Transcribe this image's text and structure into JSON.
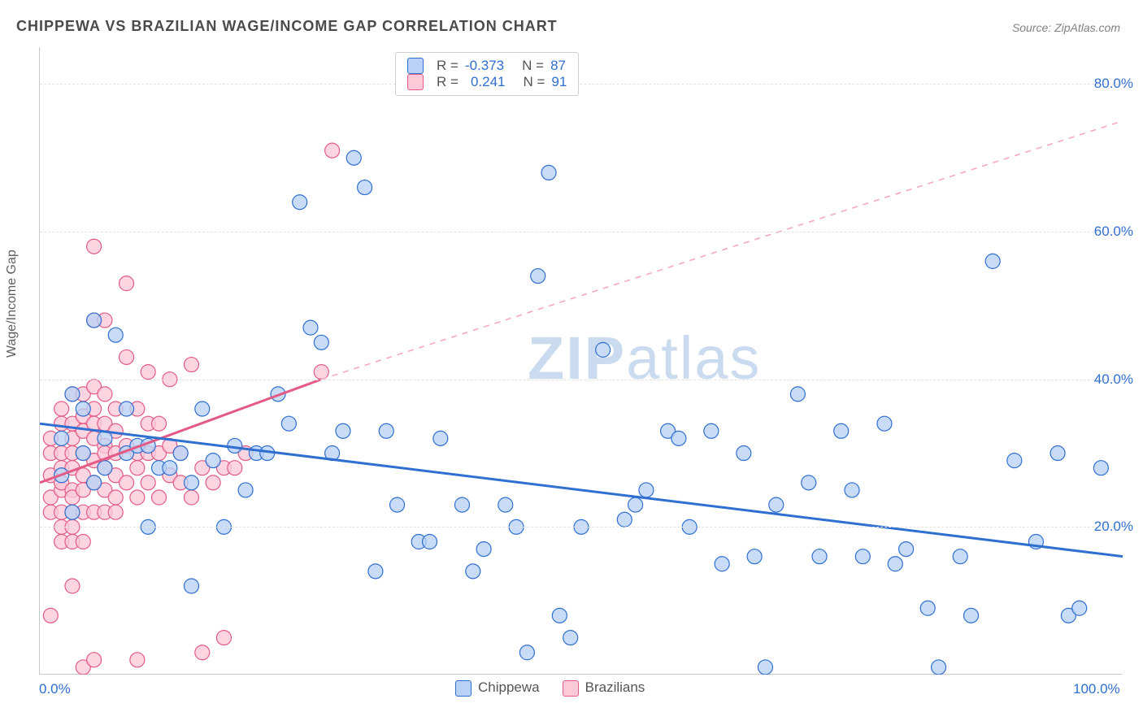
{
  "chart": {
    "type": "scatter",
    "title": "CHIPPEWA VS BRAZILIAN WAGE/INCOME GAP CORRELATION CHART",
    "source": "Source: ZipAtlas.com",
    "ylabel": "Wage/Income Gap",
    "watermark": "ZIPatlas",
    "background_color": "#ffffff",
    "grid_color": "#e2e2e2",
    "axis_color": "#c8c8c8",
    "label_color": "#4a4a4a",
    "tick_color": "#2f6fd0",
    "xlim": [
      0,
      100
    ],
    "ylim": [
      0,
      85
    ],
    "xticks": [
      {
        "v": 0,
        "label": "0.0%"
      },
      {
        "v": 100,
        "label": "100.0%"
      }
    ],
    "yticks": [
      {
        "v": 20,
        "label": "20.0%"
      },
      {
        "v": 40,
        "label": "40.0%"
      },
      {
        "v": 60,
        "label": "60.0%"
      },
      {
        "v": 80,
        "label": "80.0%"
      }
    ],
    "legend": {
      "series": [
        {
          "key": "chippewa",
          "label": "Chippewa",
          "swatch_fill": "#b8d1f5",
          "swatch_stroke": "#2f6fd0"
        },
        {
          "key": "brazilians",
          "label": "Brazilians",
          "swatch_fill": "#fbc9d8",
          "swatch_stroke": "#e35b84"
        }
      ],
      "correlation": [
        {
          "key": "chippewa",
          "R": "-0.373",
          "N": "87"
        },
        {
          "key": "brazilians",
          "R": "0.241",
          "N": "91"
        }
      ]
    },
    "series": {
      "chippewa": {
        "marker_fill": "#b8d1f5",
        "marker_stroke": "#2f6fd0",
        "marker_r": 9,
        "marker_stroke_w": 1.2,
        "marker_opacity": 0.78,
        "trend": {
          "solid_color": "#2f6fd0",
          "solid_w": 3,
          "x1": 0,
          "y1": 34,
          "x2": 100,
          "y2": 16
        },
        "points": [
          [
            2,
            32
          ],
          [
            2,
            27
          ],
          [
            3,
            22
          ],
          [
            3,
            38
          ],
          [
            4,
            30
          ],
          [
            4,
            36
          ],
          [
            5,
            26
          ],
          [
            5,
            48
          ],
          [
            6,
            32
          ],
          [
            6,
            28
          ],
          [
            7,
            46
          ],
          [
            8,
            30
          ],
          [
            8,
            36
          ],
          [
            9,
            31
          ],
          [
            10,
            31
          ],
          [
            10,
            20
          ],
          [
            11,
            28
          ],
          [
            12,
            28
          ],
          [
            13,
            30
          ],
          [
            14,
            26
          ],
          [
            14,
            12
          ],
          [
            15,
            36
          ],
          [
            16,
            29
          ],
          [
            17,
            20
          ],
          [
            18,
            31
          ],
          [
            19,
            25
          ],
          [
            20,
            30
          ],
          [
            21,
            30
          ],
          [
            22,
            38
          ],
          [
            23,
            34
          ],
          [
            24,
            64
          ],
          [
            25,
            47
          ],
          [
            26,
            45
          ],
          [
            27,
            30
          ],
          [
            28,
            33
          ],
          [
            29,
            70
          ],
          [
            30,
            66
          ],
          [
            31,
            14
          ],
          [
            32,
            33
          ],
          [
            33,
            23
          ],
          [
            35,
            18
          ],
          [
            36,
            18
          ],
          [
            37,
            32
          ],
          [
            39,
            23
          ],
          [
            40,
            14
          ],
          [
            41,
            17
          ],
          [
            43,
            23
          ],
          [
            44,
            20
          ],
          [
            45,
            3
          ],
          [
            46,
            54
          ],
          [
            47,
            68
          ],
          [
            48,
            8
          ],
          [
            49,
            5
          ],
          [
            50,
            20
          ],
          [
            52,
            44
          ],
          [
            54,
            21
          ],
          [
            55,
            23
          ],
          [
            56,
            25
          ],
          [
            58,
            33
          ],
          [
            59,
            32
          ],
          [
            60,
            20
          ],
          [
            62,
            33
          ],
          [
            63,
            15
          ],
          [
            65,
            30
          ],
          [
            66,
            16
          ],
          [
            67,
            1
          ],
          [
            68,
            23
          ],
          [
            70,
            38
          ],
          [
            71,
            26
          ],
          [
            72,
            16
          ],
          [
            74,
            33
          ],
          [
            75,
            25
          ],
          [
            76,
            16
          ],
          [
            78,
            34
          ],
          [
            79,
            15
          ],
          [
            80,
            17
          ],
          [
            82,
            9
          ],
          [
            83,
            1
          ],
          [
            85,
            16
          ],
          [
            86,
            8
          ],
          [
            88,
            56
          ],
          [
            90,
            29
          ],
          [
            92,
            18
          ],
          [
            94,
            30
          ],
          [
            95,
            8
          ],
          [
            96,
            9
          ],
          [
            98,
            28
          ]
        ]
      },
      "brazilians": {
        "marker_fill": "#fbc9d8",
        "marker_stroke": "#e35b84",
        "marker_r": 9,
        "marker_stroke_w": 1.2,
        "marker_opacity": 0.78,
        "trend": {
          "solid_color": "#e35b84",
          "solid_w": 3,
          "x_solid_end": 26,
          "y_solid_end": 40,
          "x1": 0,
          "y1": 26,
          "dash_color": "#f5a8c0",
          "dash_w": 1.6,
          "x2": 100,
          "y2": 75
        },
        "points": [
          [
            1,
            27
          ],
          [
            1,
            30
          ],
          [
            1,
            24
          ],
          [
            1,
            22
          ],
          [
            1,
            32
          ],
          [
            1,
            8
          ],
          [
            2,
            28
          ],
          [
            2,
            30
          ],
          [
            2,
            25
          ],
          [
            2,
            22
          ],
          [
            2,
            34
          ],
          [
            2,
            18
          ],
          [
            2,
            36
          ],
          [
            2,
            20
          ],
          [
            2,
            26
          ],
          [
            3,
            30
          ],
          [
            3,
            28
          ],
          [
            3,
            25
          ],
          [
            3,
            22
          ],
          [
            3,
            32
          ],
          [
            3,
            34
          ],
          [
            3,
            24
          ],
          [
            3,
            38
          ],
          [
            3,
            20
          ],
          [
            3,
            18
          ],
          [
            3,
            12
          ],
          [
            4,
            27
          ],
          [
            4,
            30
          ],
          [
            4,
            25
          ],
          [
            4,
            22
          ],
          [
            4,
            33
          ],
          [
            4,
            35
          ],
          [
            4,
            38
          ],
          [
            4,
            18
          ],
          [
            4,
            1
          ],
          [
            5,
            29
          ],
          [
            5,
            26
          ],
          [
            5,
            32
          ],
          [
            5,
            34
          ],
          [
            5,
            22
          ],
          [
            5,
            36
          ],
          [
            5,
            39
          ],
          [
            5,
            48
          ],
          [
            5,
            58
          ],
          [
            5,
            2
          ],
          [
            6,
            28
          ],
          [
            6,
            31
          ],
          [
            6,
            25
          ],
          [
            6,
            34
          ],
          [
            6,
            22
          ],
          [
            6,
            30
          ],
          [
            6,
            38
          ],
          [
            6,
            48
          ],
          [
            7,
            27
          ],
          [
            7,
            30
          ],
          [
            7,
            24
          ],
          [
            7,
            33
          ],
          [
            7,
            36
          ],
          [
            7,
            22
          ],
          [
            8,
            31
          ],
          [
            8,
            26
          ],
          [
            8,
            43
          ],
          [
            8,
            53
          ],
          [
            9,
            28
          ],
          [
            9,
            24
          ],
          [
            9,
            36
          ],
          [
            9,
            30
          ],
          [
            9,
            2
          ],
          [
            10,
            30
          ],
          [
            10,
            26
          ],
          [
            10,
            34
          ],
          [
            10,
            41
          ],
          [
            11,
            24
          ],
          [
            11,
            30
          ],
          [
            11,
            34
          ],
          [
            12,
            31
          ],
          [
            12,
            27
          ],
          [
            12,
            40
          ],
          [
            13,
            26
          ],
          [
            13,
            30
          ],
          [
            14,
            24
          ],
          [
            14,
            42
          ],
          [
            15,
            28
          ],
          [
            15,
            3
          ],
          [
            16,
            26
          ],
          [
            17,
            28
          ],
          [
            17,
            5
          ],
          [
            18,
            28
          ],
          [
            19,
            30
          ],
          [
            26,
            41
          ],
          [
            27,
            71
          ]
        ]
      }
    }
  }
}
